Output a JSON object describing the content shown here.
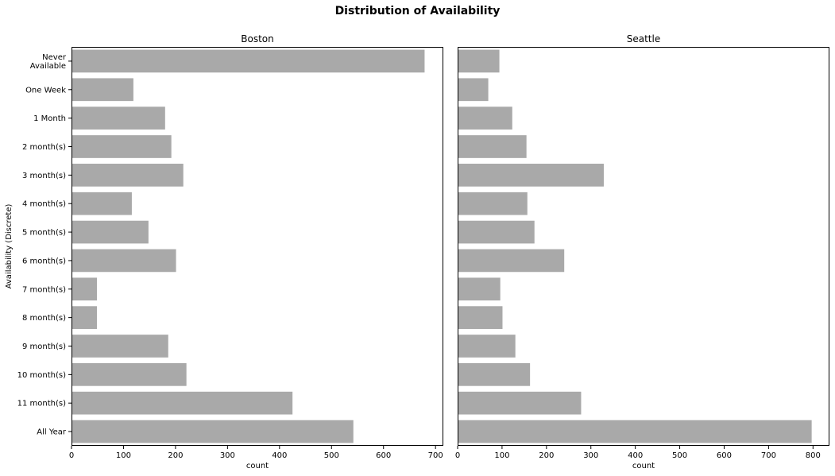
{
  "figure": {
    "title": "Distribution of Availability"
  },
  "chart_data": [
    {
      "type": "bar",
      "orientation": "horizontal",
      "title": "Boston",
      "xlabel": "count",
      "ylabel": "Availability (Discrete)",
      "xlim": [
        0,
        715
      ],
      "xticks": [
        0,
        100,
        200,
        300,
        400,
        500,
        600,
        700
      ],
      "categories": [
        [
          "Never",
          "Available"
        ],
        "One Week",
        "1 Month",
        "2 month(s)",
        "3 month(s)",
        "4 month(s)",
        "5 month(s)",
        "6 month(s)",
        "7 month(s)",
        "8 month(s)",
        "9 month(s)",
        "10 month(s)",
        "11 month(s)",
        "All Year"
      ],
      "values": [
        679,
        119,
        180,
        192,
        215,
        116,
        148,
        201,
        49,
        49,
        186,
        221,
        425,
        542
      ],
      "bar_color": "#a9a9a9"
    },
    {
      "type": "bar",
      "orientation": "horizontal",
      "title": "Seattle",
      "xlabel": "count",
      "ylabel": "",
      "xlim": [
        0,
        837
      ],
      "xticks": [
        0,
        100,
        200,
        300,
        400,
        500,
        600,
        700,
        800
      ],
      "categories": [
        [
          "Never",
          "Available"
        ],
        "One Week",
        "1 Month",
        "2 month(s)",
        "3 month(s)",
        "4 month(s)",
        "5 month(s)",
        "6 month(s)",
        "7 month(s)",
        "8 month(s)",
        "9 month(s)",
        "10 month(s)",
        "11 month(s)",
        "All Year"
      ],
      "values": [
        94,
        69,
        123,
        155,
        329,
        157,
        173,
        240,
        96,
        101,
        130,
        163,
        278,
        797
      ],
      "bar_color": "#a9a9a9"
    }
  ]
}
